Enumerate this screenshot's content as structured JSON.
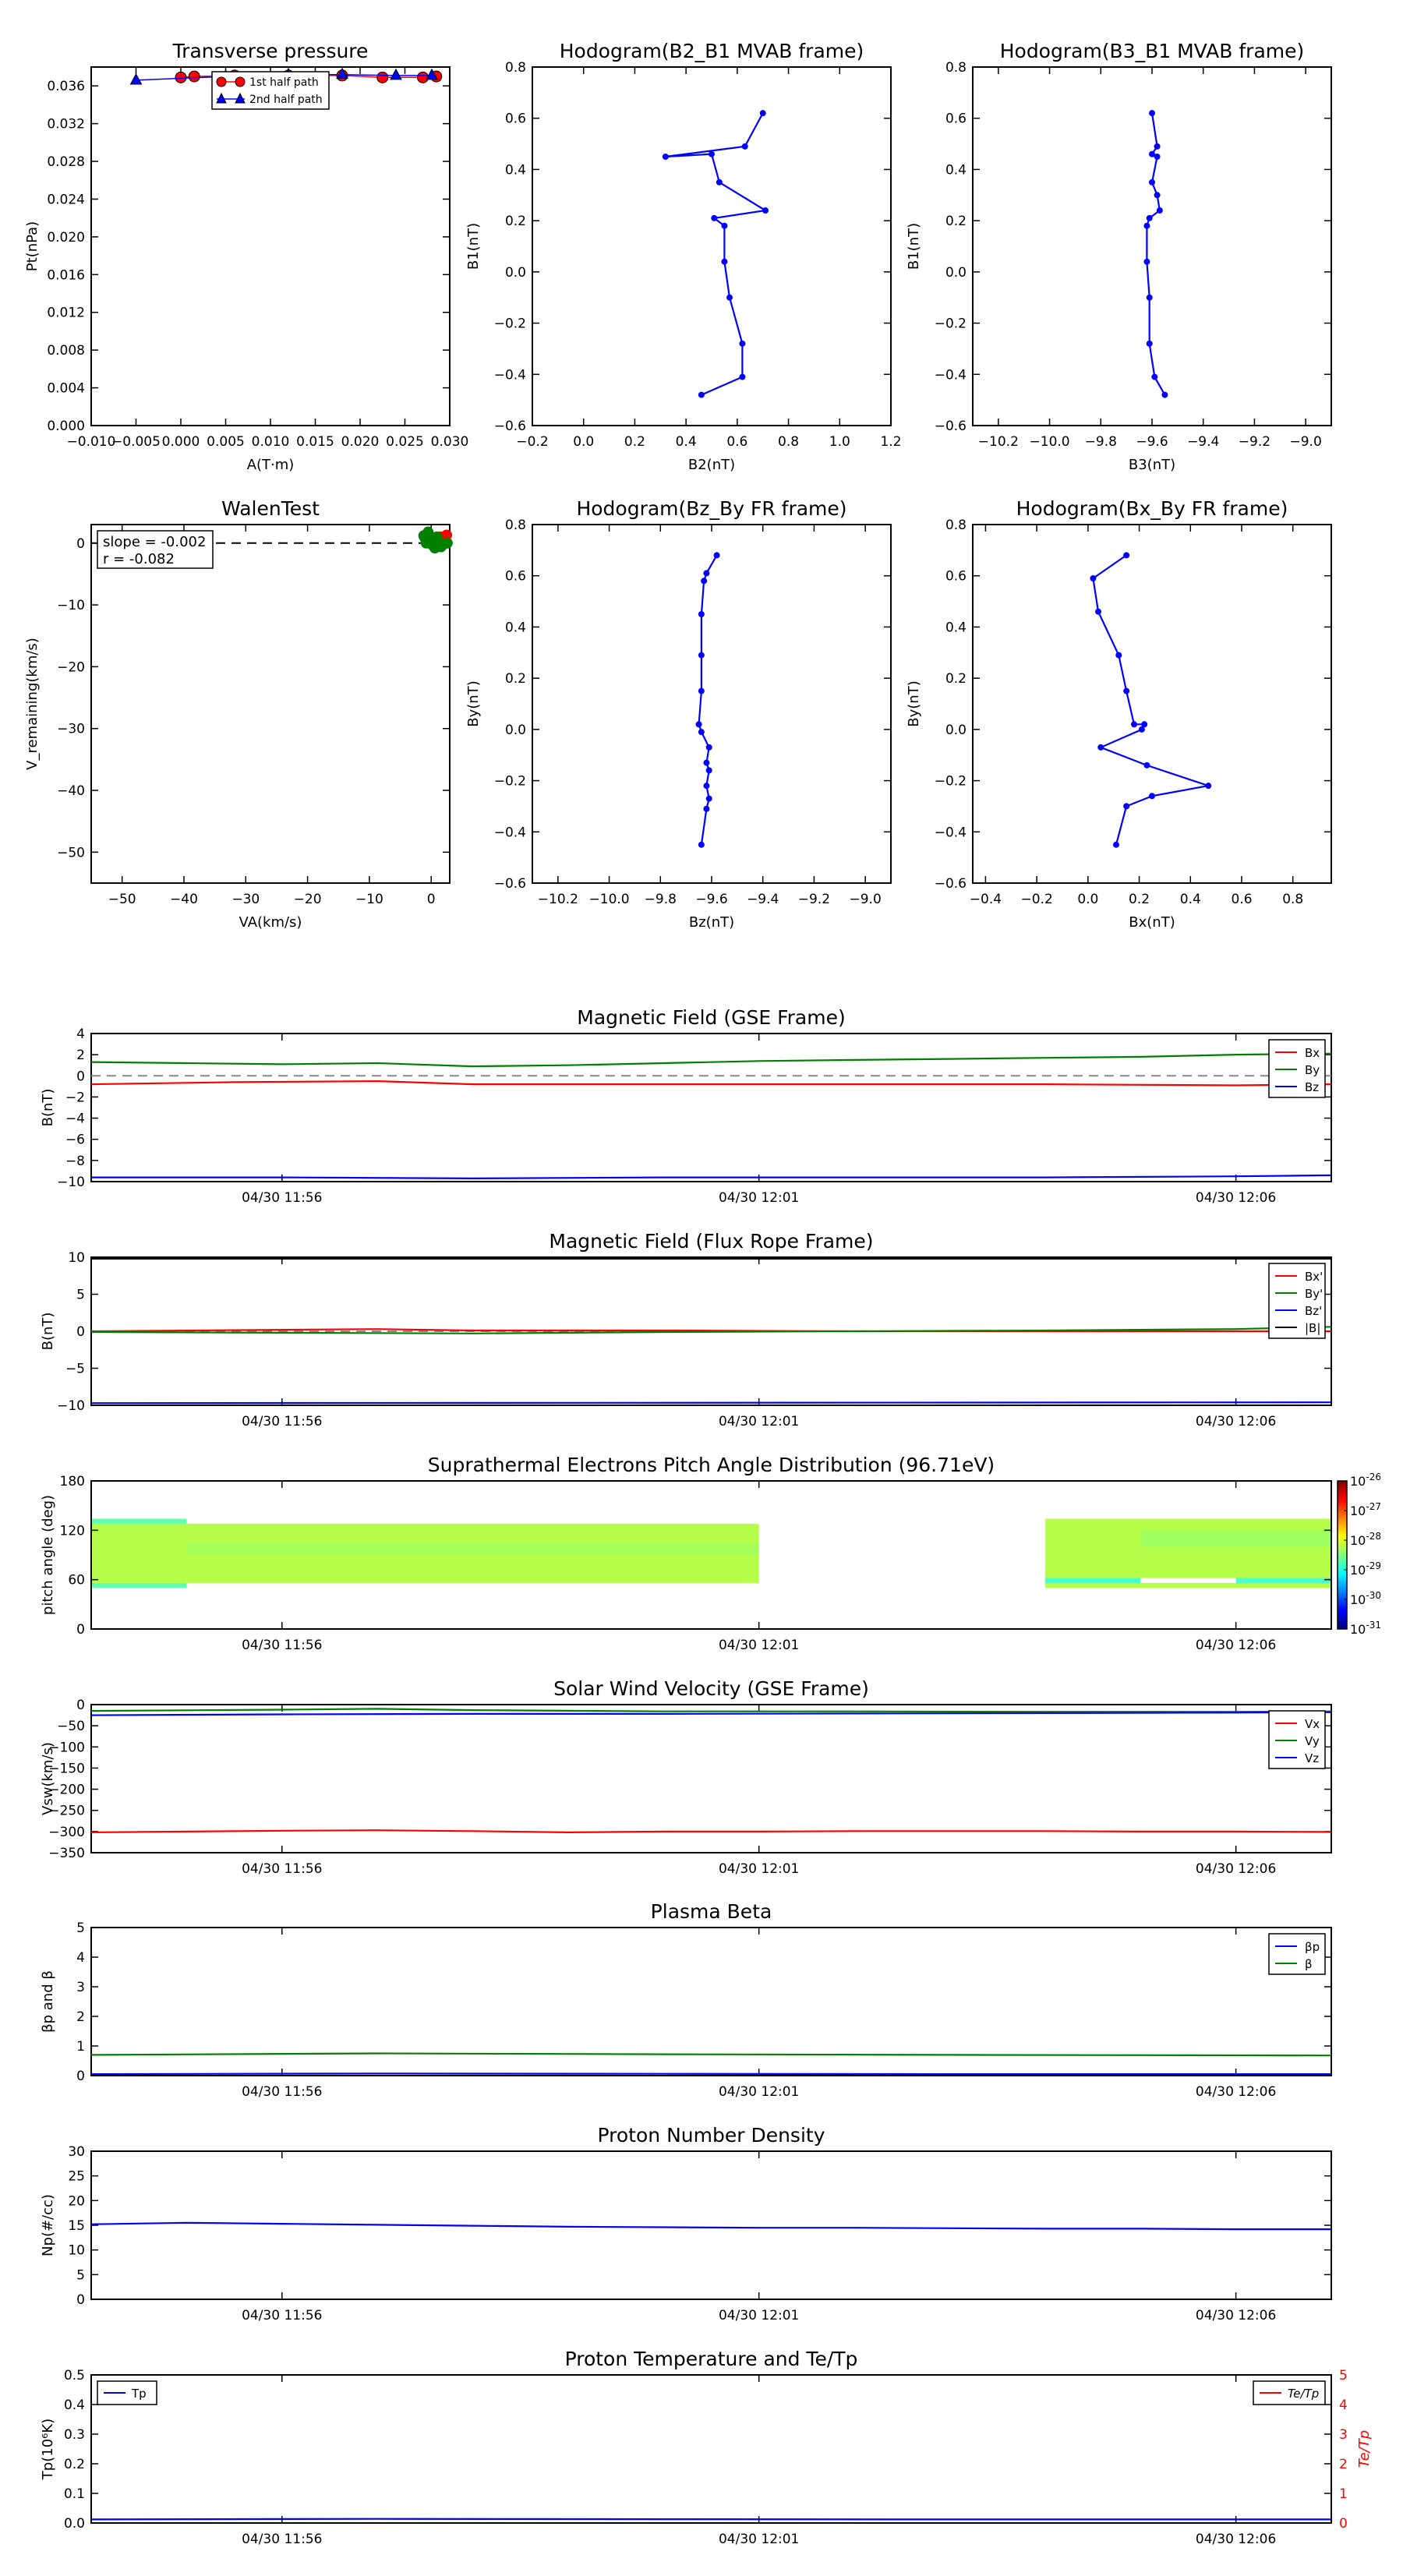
{
  "chart_data": [
    {
      "id": "p1",
      "type": "scatter",
      "title": "Transverse pressure",
      "xlabel": "A(T·m)",
      "ylabel": "Pt(nPa)",
      "xlim": [
        -0.01,
        0.03
      ],
      "ylim": [
        0.0,
        0.038
      ],
      "xticks": [
        "−0.010",
        "−0.005",
        "0.000",
        "0.005",
        "0.010",
        "0.015",
        "0.020",
        "0.025",
        "0.030"
      ],
      "yticks": [
        "0.000",
        "0.004",
        "0.008",
        "0.012",
        "0.016",
        "0.020",
        "0.024",
        "0.028",
        "0.032",
        "0.036"
      ],
      "series": [
        {
          "name": "1st half path",
          "marker": "circle",
          "color": "#ff0000",
          "x": [
            0.0,
            0.0015,
            0.006,
            0.012,
            0.018,
            0.0225,
            0.027,
            0.0285
          ],
          "y": [
            0.0369,
            0.037,
            0.0371,
            0.0371,
            0.0371,
            0.0369,
            0.0369,
            0.037
          ]
        },
        {
          "name": "2nd half path",
          "marker": "triangle",
          "color": "#0000ff",
          "x": [
            -0.005,
            0.005,
            0.012,
            0.018,
            0.024,
            0.028
          ],
          "y": [
            0.0366,
            0.037,
            0.0372,
            0.0372,
            0.0371,
            0.0371
          ]
        }
      ]
    },
    {
      "id": "p2",
      "type": "line",
      "title": "Hodogram(B2_B1 MVAB frame)",
      "xlabel": "B2(nT)",
      "ylabel": "B1(nT)",
      "xlim": [
        -0.2,
        1.2
      ],
      "ylim": [
        -0.6,
        0.8
      ],
      "xticks": [
        "−0.2",
        "0.0",
        "0.2",
        "0.4",
        "0.6",
        "0.8",
        "1.0",
        "1.2"
      ],
      "yticks": [
        "−0.6",
        "−0.4",
        "−0.2",
        "0.0",
        "0.2",
        "0.4",
        "0.6",
        "0.8"
      ],
      "x": [
        0.46,
        0.62,
        0.62,
        0.57,
        0.55,
        0.55,
        0.51,
        0.71,
        0.53,
        0.5,
        0.32,
        0.63,
        0.7
      ],
      "y": [
        -0.48,
        -0.41,
        -0.28,
        -0.1,
        0.04,
        0.18,
        0.21,
        0.24,
        0.35,
        0.46,
        0.45,
        0.49,
        0.62
      ]
    },
    {
      "id": "p3",
      "type": "line",
      "title": "Hodogram(B3_B1 MVAB frame)",
      "xlabel": "B3(nT)",
      "ylabel": "B1(nT)",
      "xlim": [
        -10.3,
        -8.9
      ],
      "ylim": [
        -0.6,
        0.8
      ],
      "xticks": [
        "−10.2",
        "−10.0",
        "−9.8",
        "−9.6",
        "−9.4",
        "−9.2",
        "−9.0"
      ],
      "yticks": [
        "−0.6",
        "−0.4",
        "−0.2",
        "0.0",
        "0.2",
        "0.4",
        "0.6",
        "0.8"
      ],
      "x": [
        -9.55,
        -9.59,
        -9.61,
        -9.61,
        -9.62,
        -9.62,
        -9.61,
        -9.57,
        -9.58,
        -9.6,
        -9.58,
        -9.6,
        -9.58,
        -9.6
      ],
      "y": [
        -0.48,
        -0.41,
        -0.28,
        -0.1,
        0.04,
        0.18,
        0.21,
        0.24,
        0.3,
        0.35,
        0.45,
        0.46,
        0.49,
        0.62
      ]
    },
    {
      "id": "p4",
      "type": "scatter",
      "title": "WalenTest",
      "xlabel": "VA(km/s)",
      "ylabel": "V_remaining(km/s)",
      "xlim": [
        -55,
        3
      ],
      "ylim": [
        -55,
        3
      ],
      "xticks": [
        "−50",
        "−40",
        "−30",
        "−20",
        "−10",
        "0"
      ],
      "yticks": [
        "−50",
        "−40",
        "−30",
        "−20",
        "−10",
        "0"
      ],
      "annotation": {
        "slope": "slope = -0.002",
        "r": "r = -0.082"
      },
      "series": [
        {
          "name": "",
          "color": "#ff0000",
          "x": [
            0.8,
            1.5,
            2.2,
            1.0,
            2.5,
            1.8
          ],
          "y": [
            0.5,
            1.0,
            0.8,
            0.2,
            1.3,
            0.6
          ]
        },
        {
          "name": "",
          "color": "#008000",
          "x": [
            -1.0,
            -0.5,
            0.2,
            0.6,
            -0.8,
            1.2,
            2.0,
            0.0,
            -1.2,
            1.6,
            2.6,
            0.9
          ],
          "y": [
            0.8,
            1.8,
            -0.3,
            -0.8,
            0.0,
            -0.5,
            -0.2,
            0.4,
            1.2,
            -0.6,
            0.0,
            1.0
          ]
        }
      ]
    },
    {
      "id": "p5",
      "type": "line",
      "title": "Hodogram(Bz_By FR frame)",
      "xlabel": "Bz(nT)",
      "ylabel": "By(nT)",
      "xlim": [
        -10.3,
        -8.9
      ],
      "ylim": [
        -0.6,
        0.8
      ],
      "xticks": [
        "−10.2",
        "−10.0",
        "−9.8",
        "−9.6",
        "−9.4",
        "−9.2",
        "−9.0"
      ],
      "yticks": [
        "−0.6",
        "−0.4",
        "−0.2",
        "0.0",
        "0.2",
        "0.4",
        "0.6",
        "0.8"
      ],
      "x": [
        -9.64,
        -9.62,
        -9.61,
        -9.62,
        -9.61,
        -9.62,
        -9.61,
        -9.64,
        -9.65,
        -9.64,
        -9.64,
        -9.64,
        -9.63,
        -9.62,
        -9.58
      ],
      "y": [
        -0.45,
        -0.31,
        -0.27,
        -0.22,
        -0.16,
        -0.13,
        -0.07,
        -0.01,
        0.02,
        0.15,
        0.29,
        0.45,
        0.58,
        0.61,
        0.68
      ]
    },
    {
      "id": "p6",
      "type": "line",
      "title": "Hodogram(Bx_By FR frame)",
      "xlabel": "Bx(nT)",
      "ylabel": "By(nT)",
      "xlim": [
        -0.45,
        0.95
      ],
      "ylim": [
        -0.6,
        0.8
      ],
      "xticks": [
        "−0.4",
        "−0.2",
        "0.0",
        "0.2",
        "0.4",
        "0.6",
        "0.8"
      ],
      "yticks": [
        "−0.6",
        "−0.4",
        "−0.2",
        "0.0",
        "0.2",
        "0.4",
        "0.6",
        "0.8"
      ],
      "x": [
        0.11,
        0.15,
        0.25,
        0.47,
        0.23,
        0.05,
        0.21,
        0.22,
        0.18,
        0.15,
        0.12,
        0.04,
        0.02,
        0.15
      ],
      "y": [
        -0.45,
        -0.3,
        -0.26,
        -0.22,
        -0.14,
        -0.07,
        0.0,
        0.02,
        0.02,
        0.15,
        0.29,
        0.46,
        0.59,
        0.68
      ]
    },
    {
      "id": "t1",
      "type": "line",
      "title": "Magnetic Field (GSE Frame)",
      "ylabel": "B(nT)",
      "ylim": [
        -10,
        4
      ],
      "yticks": [
        "−10",
        "−8",
        "−6",
        "−4",
        "−2",
        "0",
        "2",
        "4"
      ],
      "xlim": [
        0,
        13
      ],
      "xtick_labels": [
        "04/30 11:56",
        "04/30 12:01",
        "04/30 12:06"
      ],
      "xtick_pos": [
        2,
        7,
        12
      ],
      "zero_line": true,
      "legend": "right-top",
      "series": [
        {
          "name": "Bx",
          "color": "#ff0000",
          "x": [
            0,
            1.5,
            3,
            4,
            6,
            8,
            10,
            12,
            13
          ],
          "y": [
            -0.8,
            -0.6,
            -0.5,
            -0.8,
            -0.8,
            -0.8,
            -0.8,
            -0.9,
            -0.8
          ]
        },
        {
          "name": "By",
          "color": "#008000",
          "x": [
            0,
            1,
            2,
            3,
            4,
            5,
            6,
            7,
            8,
            9,
            10,
            11,
            12,
            13
          ],
          "y": [
            1.3,
            1.2,
            1.1,
            1.2,
            0.9,
            1.0,
            1.2,
            1.4,
            1.5,
            1.6,
            1.7,
            1.8,
            2.0,
            2.1
          ]
        },
        {
          "name": "Bz",
          "color": "#0000ff",
          "x": [
            0,
            2,
            4,
            6,
            8,
            10,
            12,
            13
          ],
          "y": [
            -9.6,
            -9.6,
            -9.7,
            -9.6,
            -9.6,
            -9.6,
            -9.5,
            -9.4
          ]
        }
      ]
    },
    {
      "id": "t2",
      "type": "line",
      "title": "Magnetic Field (Flux Rope Frame)",
      "ylabel": "B(nT)",
      "ylim": [
        -10,
        10
      ],
      "yticks": [
        "−10",
        "−5",
        "0",
        "5",
        "10"
      ],
      "xlim": [
        0,
        13
      ],
      "xtick_labels": [
        "04/30 11:56",
        "04/30 12:01",
        "04/30 12:06"
      ],
      "xtick_pos": [
        2,
        7,
        12
      ],
      "zero_line": true,
      "legend": "right-top",
      "series": [
        {
          "name": "Bx'",
          "color": "#ff0000",
          "x": [
            0,
            2,
            3,
            4,
            6,
            8,
            10,
            12,
            13
          ],
          "y": [
            0.0,
            0.2,
            0.3,
            0.1,
            0.1,
            0.0,
            0.0,
            0.0,
            0.0
          ]
        },
        {
          "name": "By'",
          "color": "#008000",
          "x": [
            0,
            2,
            4,
            6,
            8,
            10,
            12,
            13
          ],
          "y": [
            -0.1,
            -0.2,
            -0.3,
            -0.1,
            0.0,
            0.1,
            0.3,
            0.6
          ]
        },
        {
          "name": "Bz'",
          "color": "#0000ff",
          "x": [
            0,
            13
          ],
          "y": [
            -9.7,
            -9.6
          ]
        },
        {
          "name": "|B|",
          "color": "#000000",
          "x": [
            0,
            13
          ],
          "y": [
            9.8,
            9.8
          ]
        }
      ]
    },
    {
      "id": "t3",
      "type": "heatmap",
      "title": "Suprathermal Electrons Pitch Angle Distribution (96.71eV)",
      "ylabel": "pitch angle (deg)",
      "ylim": [
        0,
        180
      ],
      "yticks": [
        "0",
        "60",
        "120",
        "180"
      ],
      "xlim": [
        0,
        13
      ],
      "xtick_labels": [
        "04/30 11:56",
        "04/30 12:01",
        "04/30 12:06"
      ],
      "xtick_pos": [
        2,
        7,
        12
      ],
      "colorbar": {
        "label_base": "10",
        "exps": [
          "-26",
          "-27",
          "-28",
          "-29",
          "-30",
          "-31"
        ],
        "colors": [
          "#00007f",
          "#0000ff",
          "#007fff",
          "#00ffff",
          "#7fff7f",
          "#ffff00",
          "#ff7f00",
          "#ff0000",
          "#7f0000"
        ]
      },
      "cells": [
        {
          "x0": 0,
          "x1": 1,
          "y0": 50,
          "y1": 56,
          "c": "#60ffb0"
        },
        {
          "x0": 0,
          "x1": 1,
          "y0": 56,
          "y1": 128,
          "c": "#b5ff48"
        },
        {
          "x0": 0,
          "x1": 1,
          "y0": 128,
          "y1": 134,
          "c": "#60ffb0"
        },
        {
          "x0": 1,
          "x1": 7,
          "y0": 56,
          "y1": 128,
          "c": "#b5ff48"
        },
        {
          "x0": 1,
          "x1": 7,
          "y0": 90,
          "y1": 104,
          "c": "#a4ff58"
        },
        {
          "x0": 10,
          "x1": 13,
          "y0": 50,
          "y1": 134,
          "c": "#b5ff48"
        },
        {
          "x0": 10,
          "x1": 11,
          "y0": 56,
          "y1": 62,
          "c": "#48ffd0"
        },
        {
          "x0": 12,
          "x1": 13,
          "y0": 56,
          "y1": 62,
          "c": "#48ffd0"
        },
        {
          "x0": 11,
          "x1": 12,
          "y0": 56,
          "y1": 62,
          "c": "#ffffff"
        },
        {
          "x0": 11,
          "x1": 13,
          "y0": 100,
          "y1": 120,
          "c": "#a0ff60"
        }
      ]
    },
    {
      "id": "t4",
      "type": "line",
      "title": "Solar Wind Velocity (GSE Frame)",
      "ylabel": "Vsw(km/s)",
      "ylim": [
        -350,
        0
      ],
      "yticks": [
        "−350",
        "−300",
        "−250",
        "−200",
        "−150",
        "−100",
        "−50",
        "0"
      ],
      "xlim": [
        0,
        13
      ],
      "xtick_labels": [
        "04/30 11:56",
        "04/30 12:01",
        "04/30 12:06"
      ],
      "xtick_pos": [
        2,
        7,
        12
      ],
      "legend": "right-top",
      "series": [
        {
          "name": "Vx",
          "color": "#ff0000",
          "x": [
            0,
            1,
            2,
            3,
            4,
            5,
            6,
            7,
            8,
            9,
            10,
            11,
            12,
            13
          ],
          "y": [
            -302,
            -300,
            -298,
            -297,
            -299,
            -302,
            -300,
            -300,
            -299,
            -299,
            -299,
            -300,
            -300,
            -301
          ]
        },
        {
          "name": "Vy",
          "color": "#008000",
          "x": [
            0,
            2,
            3,
            4,
            6,
            8,
            10,
            12,
            13
          ],
          "y": [
            -15,
            -12,
            -10,
            -13,
            -16,
            -16,
            -17,
            -17,
            -16
          ]
        },
        {
          "name": "Vz",
          "color": "#0000ff",
          "x": [
            0,
            2,
            4,
            6,
            8,
            10,
            12,
            13
          ],
          "y": [
            -25,
            -23,
            -22,
            -22,
            -21,
            -20,
            -19,
            -18
          ]
        }
      ]
    },
    {
      "id": "t5",
      "type": "line",
      "title": "Plasma Beta",
      "ylabel": "βp and β",
      "ylim": [
        0,
        5
      ],
      "yticks": [
        "0",
        "1",
        "2",
        "3",
        "4",
        "5"
      ],
      "xlim": [
        0,
        13
      ],
      "xtick_labels": [
        "04/30 11:56",
        "04/30 12:01",
        "04/30 12:06"
      ],
      "xtick_pos": [
        2,
        7,
        12
      ],
      "legend": "right-top",
      "series": [
        {
          "name": "βp",
          "color": "#0000ff",
          "x": [
            0,
            3,
            6,
            9,
            13
          ],
          "y": [
            0.05,
            0.07,
            0.06,
            0.05,
            0.05
          ]
        },
        {
          "name": "β",
          "color": "#008000",
          "x": [
            0,
            3,
            6,
            9,
            13
          ],
          "y": [
            0.7,
            0.75,
            0.72,
            0.7,
            0.68
          ]
        }
      ]
    },
    {
      "id": "t6",
      "type": "line",
      "title": "Proton Number Density",
      "ylabel": "Np(#/cc)",
      "ylim": [
        0,
        30
      ],
      "yticks": [
        "0",
        "5",
        "10",
        "15",
        "20",
        "25",
        "30"
      ],
      "xlim": [
        0,
        13
      ],
      "xtick_labels": [
        "04/30 11:56",
        "04/30 12:01",
        "04/30 12:06"
      ],
      "xtick_pos": [
        2,
        7,
        12
      ],
      "series": [
        {
          "name": "",
          "color": "#0000ff",
          "x": [
            0,
            1,
            2,
            3,
            4,
            5,
            6,
            7,
            8,
            9,
            10,
            11,
            12,
            13
          ],
          "y": [
            15.2,
            15.5,
            15.3,
            15.1,
            14.9,
            14.7,
            14.6,
            14.5,
            14.5,
            14.4,
            14.3,
            14.3,
            14.2,
            14.2
          ]
        }
      ]
    },
    {
      "id": "t7",
      "type": "line",
      "title": "Proton Temperature and Te/Tp",
      "ylabel": "Tp(10⁶K)",
      "y2label": "Te/Tp",
      "ylim": [
        0,
        0.5
      ],
      "yticks": [
        "0.0",
        "0.1",
        "0.2",
        "0.3",
        "0.4",
        "0.5"
      ],
      "y2lim": [
        0,
        5
      ],
      "y2ticks": [
        "0",
        "1",
        "2",
        "3",
        "4",
        "5"
      ],
      "xlim": [
        0,
        13
      ],
      "xtick_labels": [
        "04/30 11:56",
        "04/30 12:01",
        "04/30 12:06"
      ],
      "xtick_pos": [
        2,
        7,
        12
      ],
      "legend_left": "Tp",
      "legend_right": "Te/Tp",
      "series": [
        {
          "name": "Tp",
          "color": "#0000ff",
          "x": [
            0,
            3,
            6,
            9,
            13
          ],
          "y": [
            0.012,
            0.014,
            0.013,
            0.012,
            0.012
          ]
        }
      ]
    }
  ]
}
